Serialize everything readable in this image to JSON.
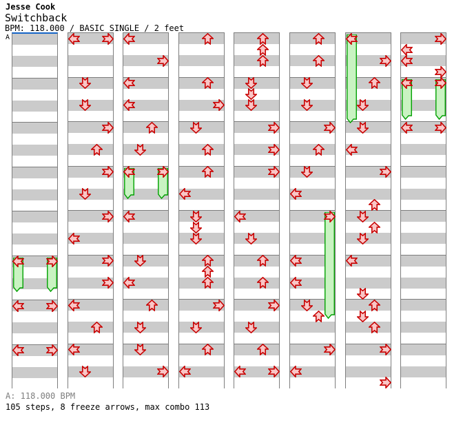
{
  "header": {
    "artist": "Jesse Cook",
    "title": "Switchback",
    "meta": "BPM: 118.000 / BASIC SINGLE / 2 feet"
  },
  "section_label": "A",
  "footer": {
    "tempo": "A: 118.000 BPM",
    "summary": "105 steps, 8 freeze arrows, max combo 113"
  },
  "colors": {
    "stripe_gray": "#cbcbcb",
    "border_gray": "#7d7d7d",
    "measure_line": "#7d7d7d",
    "arrow_stroke": "#c80000",
    "arrow_fill": "#f9c6c6",
    "freeze_stroke": "#00a000",
    "freeze_fill": "#c9f3c2",
    "section_line_blue": "#1464c8",
    "footer_gray": "#7d7d7d"
  },
  "chart": {
    "type": "ddr-stepchart",
    "lanes": [
      "L",
      "D",
      "U",
      "R"
    ],
    "rows_per_column": 32,
    "beats_per_measure": 4,
    "measures_per_column": 8,
    "stats": {
      "steps": 105,
      "freeze_arrows": 8,
      "max_combo": 113,
      "bpm": "118.000"
    },
    "columns": [
      {
        "notes": [
          {
            "row": 20,
            "lane": "L",
            "freeze": 3.2
          },
          {
            "row": 20,
            "lane": "R",
            "freeze": 3.2
          },
          {
            "row": 24,
            "lane": "L"
          },
          {
            "row": 24,
            "lane": "R"
          },
          {
            "row": 28,
            "lane": "L"
          },
          {
            "row": 28,
            "lane": "R"
          }
        ]
      },
      {
        "notes": [
          {
            "row": 0,
            "lane": "L"
          },
          {
            "row": 0,
            "lane": "R"
          },
          {
            "row": 4,
            "lane": "D"
          },
          {
            "row": 6,
            "lane": "D"
          },
          {
            "row": 8,
            "lane": "R"
          },
          {
            "row": 10,
            "lane": "U"
          },
          {
            "row": 12,
            "lane": "R"
          },
          {
            "row": 14,
            "lane": "D"
          },
          {
            "row": 16,
            "lane": "R"
          },
          {
            "row": 18,
            "lane": "L"
          },
          {
            "row": 20,
            "lane": "R"
          },
          {
            "row": 22,
            "lane": "R"
          },
          {
            "row": 24,
            "lane": "L"
          },
          {
            "row": 26,
            "lane": "U"
          },
          {
            "row": 28,
            "lane": "L"
          },
          {
            "row": 30,
            "lane": "D"
          }
        ]
      },
      {
        "notes": [
          {
            "row": 0,
            "lane": "L"
          },
          {
            "row": 2,
            "lane": "R"
          },
          {
            "row": 4,
            "lane": "L"
          },
          {
            "row": 6,
            "lane": "L"
          },
          {
            "row": 8,
            "lane": "U"
          },
          {
            "row": 10,
            "lane": "D"
          },
          {
            "row": 12,
            "lane": "L",
            "freeze": 2.9
          },
          {
            "row": 12,
            "lane": "R",
            "freeze": 2.9
          },
          {
            "row": 16,
            "lane": "L"
          },
          {
            "row": 20,
            "lane": "D"
          },
          {
            "row": 22,
            "lane": "L"
          },
          {
            "row": 24,
            "lane": "U"
          },
          {
            "row": 26,
            "lane": "D"
          },
          {
            "row": 28,
            "lane": "D"
          },
          {
            "row": 30,
            "lane": "R"
          }
        ]
      },
      {
        "notes": [
          {
            "row": 0,
            "lane": "U"
          },
          {
            "row": 4,
            "lane": "U"
          },
          {
            "row": 6,
            "lane": "R"
          },
          {
            "row": 8,
            "lane": "D"
          },
          {
            "row": 10,
            "lane": "U"
          },
          {
            "row": 12,
            "lane": "U"
          },
          {
            "row": 14,
            "lane": "L"
          },
          {
            "row": 16,
            "lane": "D"
          },
          {
            "row": 17,
            "lane": "D"
          },
          {
            "row": 18,
            "lane": "D"
          },
          {
            "row": 20,
            "lane": "U"
          },
          {
            "row": 21,
            "lane": "U"
          },
          {
            "row": 22,
            "lane": "U"
          },
          {
            "row": 24,
            "lane": "R"
          },
          {
            "row": 26,
            "lane": "D"
          },
          {
            "row": 28,
            "lane": "U"
          },
          {
            "row": 30,
            "lane": "L"
          }
        ]
      },
      {
        "notes": [
          {
            "row": 0,
            "lane": "U"
          },
          {
            "row": 1,
            "lane": "U"
          },
          {
            "row": 2,
            "lane": "U"
          },
          {
            "row": 4,
            "lane": "D"
          },
          {
            "row": 5,
            "lane": "D"
          },
          {
            "row": 6,
            "lane": "D"
          },
          {
            "row": 8,
            "lane": "R"
          },
          {
            "row": 10,
            "lane": "R"
          },
          {
            "row": 12,
            "lane": "R"
          },
          {
            "row": 16,
            "lane": "L"
          },
          {
            "row": 18,
            "lane": "D"
          },
          {
            "row": 20,
            "lane": "U"
          },
          {
            "row": 22,
            "lane": "U"
          },
          {
            "row": 24,
            "lane": "R"
          },
          {
            "row": 26,
            "lane": "D"
          },
          {
            "row": 28,
            "lane": "U"
          },
          {
            "row": 30,
            "lane": "L"
          },
          {
            "row": 30,
            "lane": "R"
          }
        ]
      },
      {
        "notes": [
          {
            "row": 0,
            "lane": "U"
          },
          {
            "row": 2,
            "lane": "U"
          },
          {
            "row": 4,
            "lane": "D"
          },
          {
            "row": 6,
            "lane": "D"
          },
          {
            "row": 8,
            "lane": "R"
          },
          {
            "row": 10,
            "lane": "U"
          },
          {
            "row": 12,
            "lane": "D"
          },
          {
            "row": 14,
            "lane": "L"
          },
          {
            "row": 16,
            "lane": "R",
            "freeze": 9.75
          },
          {
            "row": 20,
            "lane": "L"
          },
          {
            "row": 22,
            "lane": "L"
          },
          {
            "row": 24,
            "lane": "D"
          },
          {
            "row": 25,
            "lane": "U"
          },
          {
            "row": 28,
            "lane": "R"
          },
          {
            "row": 30,
            "lane": "L"
          }
        ]
      },
      {
        "notes": [
          {
            "row": 0,
            "lane": "L",
            "freeze": 8.1
          },
          {
            "row": 2,
            "lane": "R"
          },
          {
            "row": 4,
            "lane": "U"
          },
          {
            "row": 6,
            "lane": "D"
          },
          {
            "row": 8,
            "lane": "D"
          },
          {
            "row": 10,
            "lane": "L"
          },
          {
            "row": 12,
            "lane": "R"
          },
          {
            "row": 15,
            "lane": "U"
          },
          {
            "row": 16,
            "lane": "D"
          },
          {
            "row": 17,
            "lane": "U"
          },
          {
            "row": 18,
            "lane": "D"
          },
          {
            "row": 20,
            "lane": "L"
          },
          {
            "row": 23,
            "lane": "D"
          },
          {
            "row": 24,
            "lane": "U"
          },
          {
            "row": 25,
            "lane": "D"
          },
          {
            "row": 26,
            "lane": "U"
          },
          {
            "row": 28,
            "lane": "R"
          },
          {
            "row": 31,
            "lane": "R"
          }
        ]
      },
      {
        "notes": [
          {
            "row": 0,
            "lane": "R"
          },
          {
            "row": 1,
            "lane": "L"
          },
          {
            "row": 2,
            "lane": "L"
          },
          {
            "row": 3,
            "lane": "R"
          },
          {
            "row": 4,
            "lane": "L",
            "freeze": 3.8
          },
          {
            "row": 4,
            "lane": "R",
            "freeze": 3.8
          },
          {
            "row": 8,
            "lane": "L"
          },
          {
            "row": 8,
            "lane": "R"
          }
        ]
      }
    ]
  }
}
